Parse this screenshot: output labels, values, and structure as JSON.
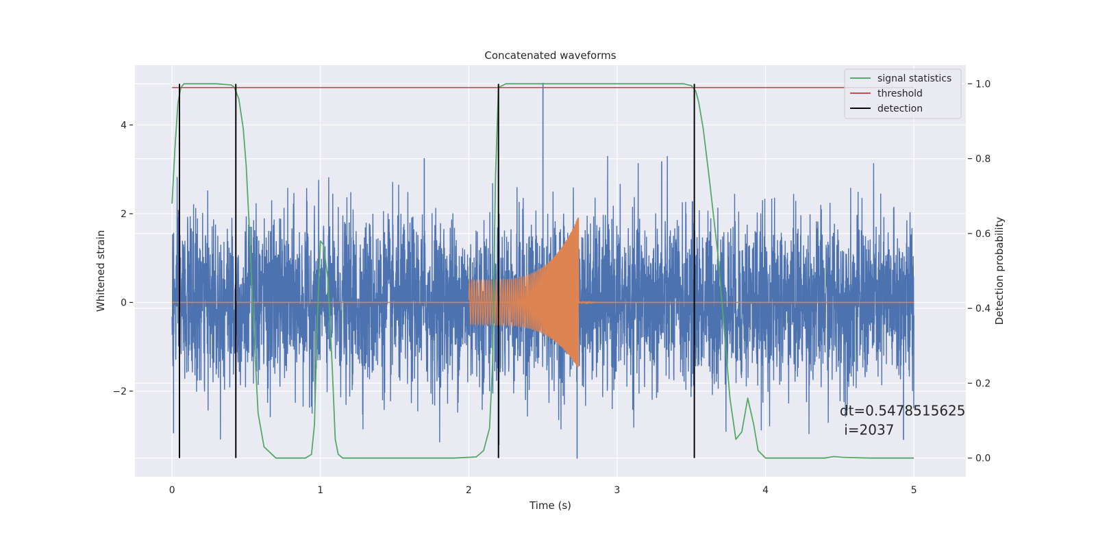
{
  "chart_data": {
    "type": "line",
    "title": "Concatenated waveforms",
    "xlabel": "Time (s)",
    "ylabel_left": "Whitened strain",
    "ylabel_right": "Detection probability",
    "xlim": [
      -0.25,
      5.35
    ],
    "ylim_left": [
      -3.93,
      5.35
    ],
    "ylim_right": [
      -0.05,
      1.05
    ],
    "x_ticks": [
      0,
      1,
      2,
      3,
      4,
      5
    ],
    "x_tick_labels": [
      "0",
      "1",
      "2",
      "3",
      "4",
      "5"
    ],
    "y_left_ticks": [
      -2,
      0,
      2,
      4
    ],
    "y_left_tick_labels": [
      "−2",
      "0",
      "2",
      "4"
    ],
    "y_right_ticks": [
      0.0,
      0.2,
      0.4,
      0.6,
      0.8,
      1.0
    ],
    "y_right_tick_labels": [
      "0.0",
      "0.2",
      "0.4",
      "0.6",
      "0.8",
      "1.0"
    ],
    "grid": true,
    "legend_position": "top-right",
    "legend": [
      {
        "label": "signal statistics",
        "color": "#55a868"
      },
      {
        "label": "threshold",
        "color": "#c44e52"
      },
      {
        "label": "detection",
        "color": "#000000"
      }
    ],
    "series": [
      {
        "name": "",
        "axis": "left",
        "color": "#4c72b0",
        "kind": "noise",
        "x_range": [
          0,
          5
        ],
        "amplitude_std": 0.95,
        "y_min": -3.55,
        "y_max": 4.95,
        "spikes": [
          {
            "x": 2.5,
            "y": 4.95
          },
          {
            "x": 2.73,
            "y": -3.52
          },
          {
            "x": 0.01,
            "y": -2.95
          },
          {
            "x": 4.93,
            "y": -3.1
          },
          {
            "x": 1.7,
            "y": 3.25
          },
          {
            "x": 3.3,
            "y": 3.18
          }
        ]
      },
      {
        "name": "",
        "axis": "left",
        "color": "#dd8452",
        "kind": "chirp",
        "baseline": 0,
        "chirp_start": 2.0,
        "chirp_end": 2.74,
        "amplitude_start": 0.5,
        "amplitude_end_upper": 1.95,
        "amplitude_end_lower": -1.5,
        "ringdown_end": 3.0
      },
      {
        "name": "signal statistics",
        "axis": "right",
        "color": "#55a868",
        "x": [
          0.0,
          0.02,
          0.04,
          0.06,
          0.08,
          0.1,
          0.2,
          0.3,
          0.4,
          0.42,
          0.45,
          0.48,
          0.5,
          0.52,
          0.55,
          0.58,
          0.62,
          0.7,
          0.8,
          0.9,
          0.94,
          0.96,
          0.98,
          1.0,
          1.02,
          1.05,
          1.08,
          1.1,
          1.12,
          1.15,
          1.2,
          1.5,
          1.9,
          2.05,
          2.1,
          2.14,
          2.16,
          2.18,
          2.2,
          2.25,
          2.5,
          3.0,
          3.45,
          3.5,
          3.53,
          3.55,
          3.58,
          3.62,
          3.68,
          3.72,
          3.76,
          3.8,
          3.84,
          3.88,
          3.92,
          3.95,
          4.0,
          4.2,
          4.4,
          4.46,
          4.52,
          4.7,
          5.0
        ],
        "y": [
          0.68,
          0.83,
          0.95,
          0.99,
          1.0,
          1.0,
          1.0,
          1.0,
          0.997,
          0.99,
          0.96,
          0.88,
          0.78,
          0.62,
          0.35,
          0.12,
          0.03,
          0.0,
          0.0,
          0.0,
          0.01,
          0.09,
          0.38,
          0.58,
          0.57,
          0.48,
          0.24,
          0.05,
          0.01,
          0.0,
          0.0,
          0.0,
          0.0,
          0.003,
          0.02,
          0.08,
          0.25,
          0.75,
          0.99,
          1.0,
          1.0,
          1.0,
          1.0,
          0.995,
          0.98,
          0.95,
          0.88,
          0.75,
          0.54,
          0.35,
          0.16,
          0.05,
          0.07,
          0.16,
          0.09,
          0.02,
          0.0,
          0.0,
          0.0,
          0.004,
          0.002,
          0.0,
          0.0
        ]
      },
      {
        "name": "threshold",
        "axis": "right",
        "color": "#c44e52",
        "x": [
          0,
          5
        ],
        "y": [
          0.99,
          0.99
        ]
      },
      {
        "name": "detection",
        "axis": "right",
        "color": "#000000",
        "vlines": [
          0.05,
          0.43,
          2.2,
          3.52
        ],
        "ymin": 0,
        "ymax": 1
      }
    ],
    "annotation": {
      "line1": "dt=0.5478515625",
      "line2": " i=2037",
      "x": 4.5,
      "y_left": -2.55
    }
  }
}
